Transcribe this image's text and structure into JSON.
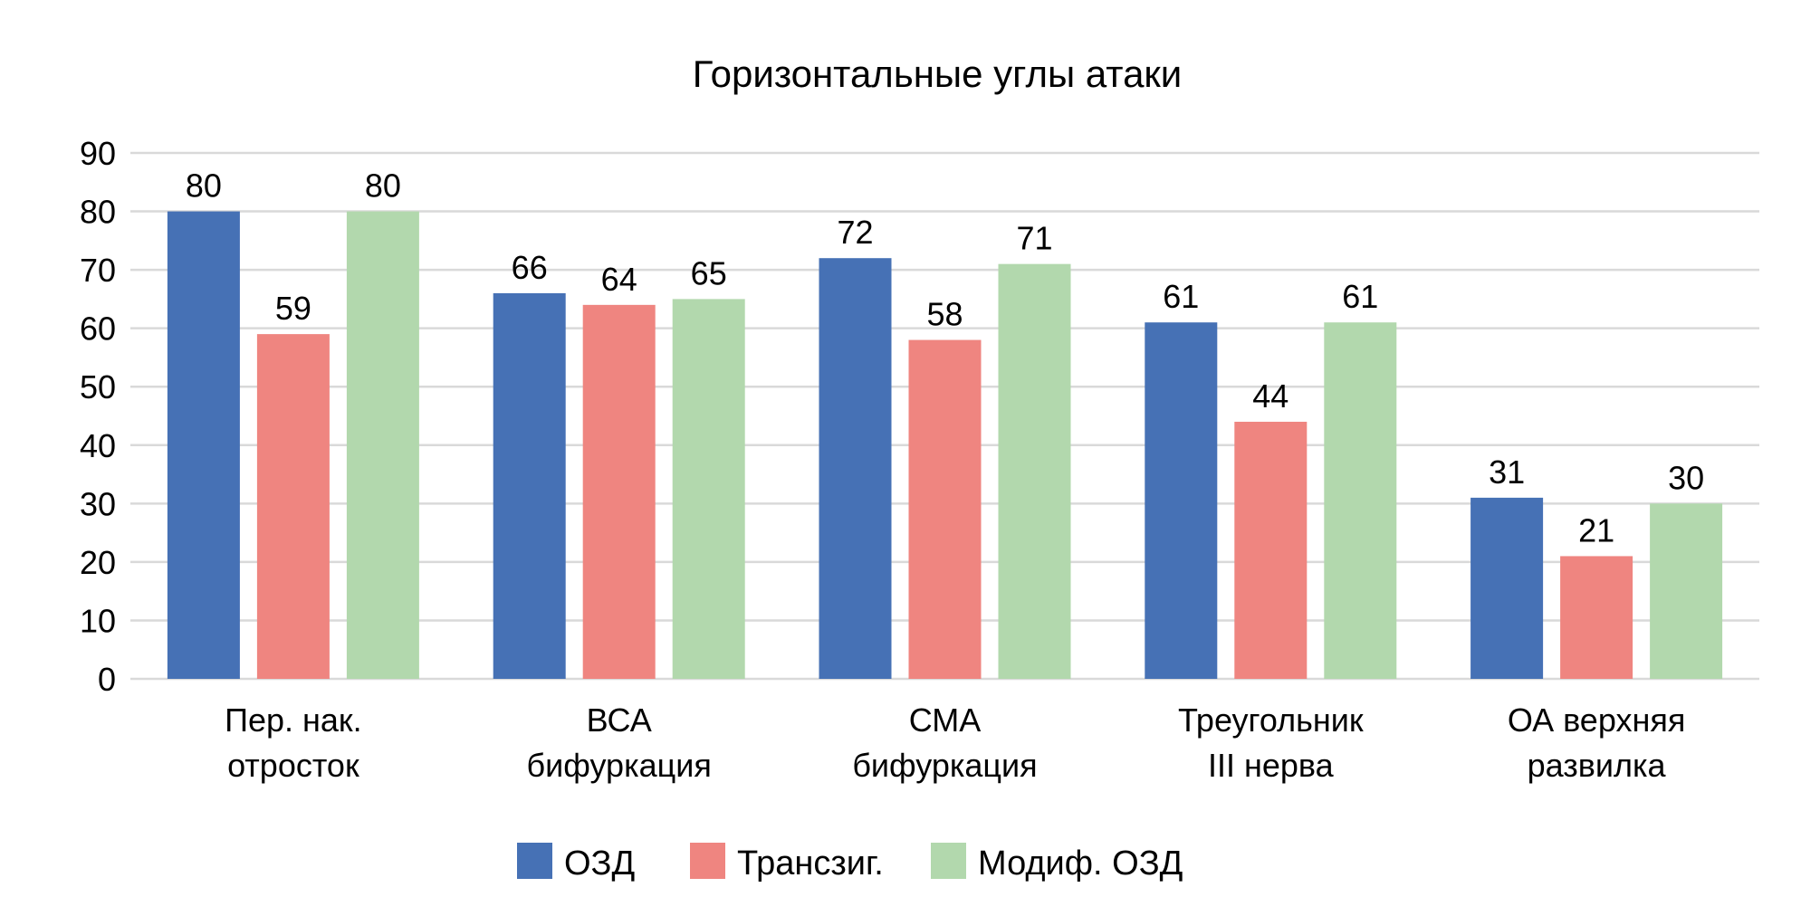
{
  "chart_data": {
    "type": "bar",
    "title": "Горизонтальные углы атаки",
    "xlabel": "",
    "ylabel": "",
    "ylim": [
      0,
      90
    ],
    "yticks": [
      "0",
      "10",
      "20",
      "30",
      "40",
      "50",
      "60",
      "70",
      "80",
      "90"
    ],
    "grid": true,
    "legend_position": "bottom",
    "categories": [
      [
        "Пер. нак.",
        "отросток"
      ],
      [
        "ВСА",
        "бифуркация"
      ],
      [
        "СМА",
        "бифуркация"
      ],
      [
        "Треугольник",
        "III нерва"
      ],
      [
        "ОА верхняя",
        "развилка"
      ]
    ],
    "series": [
      {
        "name": "ОЗД",
        "color": "#4671b5",
        "values": [
          80,
          66,
          72,
          61,
          31
        ]
      },
      {
        "name": "Трансзиг.",
        "color": "#ef8580",
        "values": [
          59,
          64,
          58,
          44,
          21
        ]
      },
      {
        "name": "Модиф. ОЗД",
        "color": "#b2d8ad",
        "values": [
          80,
          65,
          71,
          61,
          30
        ]
      }
    ]
  }
}
